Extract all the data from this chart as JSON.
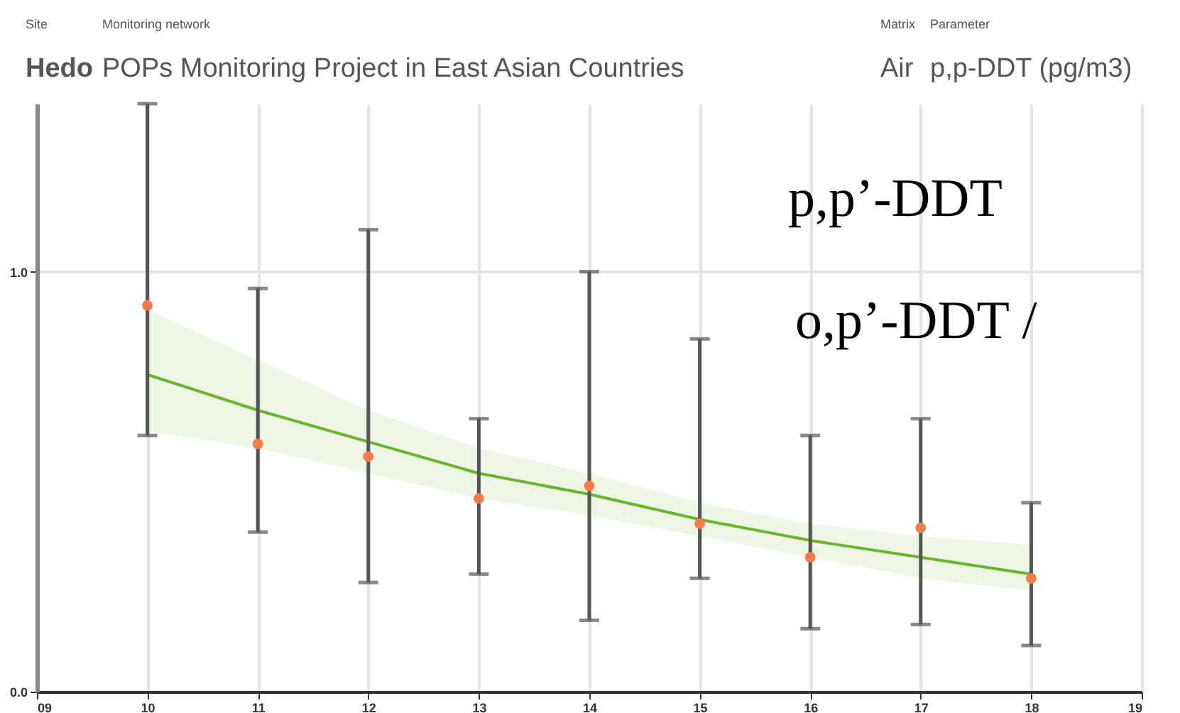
{
  "chart_data": {
    "type": "scatter",
    "annotations": [
      "Site",
      "Hedo",
      "Monitoring network",
      "POPs Monitoring Project in East Asian Countries",
      "Matrix",
      "Air",
      "Parameter",
      "p,p-DDT (pg/m3)",
      "p,p’-DDT",
      "o,p’-DDT /"
    ],
    "x": [
      10,
      11,
      12,
      13,
      14,
      15,
      16,
      17,
      18
    ],
    "series": [
      {
        "type": "line",
        "color": "#6ab42d",
        "x": [
          10,
          11,
          12,
          13,
          14,
          15,
          16,
          17,
          18
        ],
        "values": [
          0.755,
          0.67,
          0.595,
          0.52,
          0.47,
          0.41,
          0.36,
          0.32,
          0.28
        ],
        "lower": [
          0.62,
          0.58,
          0.52,
          0.46,
          0.42,
          0.37,
          0.32,
          0.27,
          0.24
        ],
        "upper": [
          0.91,
          0.79,
          0.67,
          0.58,
          0.52,
          0.45,
          0.4,
          0.37,
          0.35
        ]
      },
      {
        "color": "#f47c4c",
        "marker": "circle",
        "values": [
          0.92,
          0.59,
          0.56,
          0.46,
          0.49,
          0.4,
          0.32,
          0.39,
          0.27
        ],
        "errors": [
          [
            0.61,
            1.4
          ],
          [
            0.38,
            0.96
          ],
          [
            0.26,
            1.1
          ],
          [
            0.28,
            0.65
          ],
          [
            0.17,
            1.0
          ],
          [
            0.27,
            0.84
          ],
          [
            0.15,
            0.61
          ],
          [
            0.16,
            0.65
          ],
          [
            0.11,
            0.45
          ]
        ]
      }
    ],
    "xlim": [
      9,
      19
    ],
    "xticks": [
      {
        "value": 9,
        "label": "09"
      },
      10,
      11,
      12,
      13,
      14,
      15,
      16,
      17,
      18,
      19
    ],
    "ylim": [
      0,
      1.4
    ],
    "yticks": [
      {
        "value": 0,
        "label": "0.0"
      },
      {
        "value": 1,
        "label": "1.0"
      }
    ],
    "grid": true
  }
}
